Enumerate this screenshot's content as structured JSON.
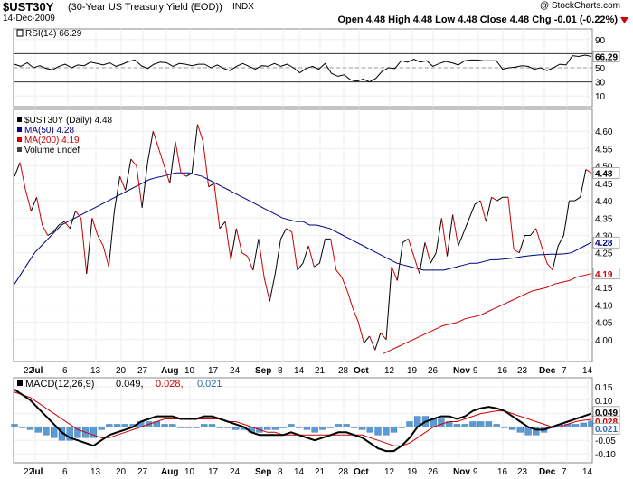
{
  "header": {
    "symbol": "$UST30Y",
    "name": "(30-Year US Treasury Yield (EOD))",
    "exchange": "INDX",
    "date": "14-Dec-2009",
    "copyright": "@ StockCharts.com",
    "ohlc": {
      "open_label": "Open",
      "open": "4.48",
      "high_label": "High",
      "high": "4.48",
      "low_label": "Low",
      "low": "4.48",
      "close_label": "Close",
      "close": "4.48",
      "chg_label": "Chg",
      "chg": "-0.01 (-0.22%)"
    },
    "colors": {
      "down": "#cc0000",
      "ma50": "#000080",
      "ma200": "#cc0000",
      "macd_signal": "#cc0000",
      "histogram": "#5b9bd5",
      "price": "#000000"
    }
  },
  "chart_data": [
    {
      "type": "line",
      "panel": "rsi",
      "legend": "RSI(14) 66.29",
      "current_label": "66.29",
      "ylim": [
        0,
        100
      ],
      "yticks": [
        "90",
        "70",
        "50",
        "30",
        "10"
      ],
      "reference_lines": [
        70,
        50,
        30
      ],
      "values": [
        55,
        52,
        57,
        50,
        53,
        49,
        47,
        52,
        55,
        50,
        54,
        53,
        58,
        56,
        54,
        57,
        52,
        55,
        59,
        61,
        53,
        49,
        55,
        58,
        57,
        52,
        56,
        55,
        53,
        55,
        55,
        50,
        54,
        49,
        46,
        52,
        56,
        52,
        48,
        53,
        52,
        56,
        52,
        55,
        50,
        43,
        49,
        52,
        48,
        56,
        42,
        38,
        40,
        33,
        31,
        34,
        30,
        35,
        45,
        50,
        49,
        60,
        58,
        62,
        58,
        60,
        52,
        56,
        59,
        57,
        54,
        60,
        61,
        61,
        60,
        60,
        60,
        48,
        50,
        51,
        53,
        52,
        48,
        50,
        46,
        50,
        55,
        54,
        67,
        66,
        68,
        66
      ]
    },
    {
      "type": "line",
      "panel": "price",
      "legend": [
        "$UST30Y (Daily) 4.48",
        "MA(50) 4.28",
        "MA(200) 4.19",
        "Volume undef"
      ],
      "ylim": [
        3.95,
        4.65
      ],
      "yticks": [
        "4.60",
        "4.55",
        "4.50",
        "4.45",
        "4.40",
        "4.35",
        "4.30",
        "4.25",
        "4.20",
        "4.15",
        "4.10",
        "4.05",
        "4.00"
      ],
      "xtick_labels": [
        "22",
        "Jul",
        "6",
        "13",
        "20",
        "27",
        "Aug",
        "10",
        "17",
        "24",
        "Sep",
        "8",
        "14",
        "21",
        "28",
        "Oct",
        "12",
        "19",
        "26",
        "Nov",
        "9",
        "16",
        "23",
        "Dec",
        "7",
        "14"
      ],
      "current_labels": [
        "4.48",
        "4.28",
        "4.19"
      ],
      "series": [
        {
          "name": "$UST30Y",
          "values": [
            4.47,
            4.51,
            4.43,
            4.37,
            4.41,
            4.33,
            4.3,
            4.31,
            4.33,
            4.34,
            4.32,
            4.37,
            4.35,
            4.19,
            4.35,
            4.3,
            4.27,
            4.21,
            4.37,
            4.47,
            4.43,
            4.52,
            4.5,
            4.38,
            4.51,
            4.6,
            4.55,
            4.5,
            4.45,
            4.57,
            4.48,
            4.47,
            4.48,
            4.62,
            4.57,
            4.44,
            4.45,
            4.32,
            4.34,
            4.23,
            4.32,
            4.25,
            4.24,
            4.2,
            4.29,
            4.18,
            4.11,
            4.19,
            4.29,
            4.32,
            4.31,
            4.2,
            4.22,
            4.27,
            4.21,
            4.22,
            4.29,
            4.29,
            4.2,
            4.18,
            4.14,
            4.09,
            4.05,
            3.99,
            4.01,
            3.97,
            4.02,
            4.0,
            4.21,
            4.17,
            4.28,
            4.29,
            4.24,
            4.19,
            4.28,
            4.22,
            4.25,
            4.35,
            4.24,
            4.36,
            4.27,
            4.31,
            4.35,
            4.39,
            4.4,
            4.34,
            4.41,
            4.4,
            4.41,
            4.41,
            4.26,
            4.25,
            4.3,
            4.3,
            4.32,
            4.27,
            4.22,
            4.2,
            4.27,
            4.3,
            4.4,
            4.4,
            4.41,
            4.49,
            4.48
          ]
        },
        {
          "name": "MA(50)",
          "values": [
            4.16,
            4.19,
            4.22,
            4.25,
            4.27,
            4.29,
            4.31,
            4.33,
            4.34,
            4.35,
            4.36,
            4.37,
            4.38,
            4.39,
            4.4,
            4.41,
            4.42,
            4.43,
            4.44,
            4.45,
            4.46,
            4.466,
            4.47,
            4.475,
            4.48,
            4.48,
            4.48,
            4.475,
            4.47,
            4.46,
            4.45,
            4.44,
            4.43,
            4.42,
            4.41,
            4.4,
            4.39,
            4.38,
            4.37,
            4.36,
            4.35,
            4.345,
            4.34,
            4.34,
            4.33,
            4.33,
            4.325,
            4.32,
            4.31,
            4.3,
            4.29,
            4.28,
            4.27,
            4.26,
            4.25,
            4.24,
            4.23,
            4.22,
            4.215,
            4.21,
            4.205,
            4.2,
            4.2,
            4.2,
            4.2,
            4.205,
            4.21,
            4.215,
            4.22,
            4.22,
            4.225,
            4.23,
            4.23,
            4.232,
            4.234,
            4.237,
            4.24,
            4.242,
            4.244,
            4.245,
            4.246,
            4.246,
            4.247,
            4.25,
            4.26,
            4.27,
            4.28
          ]
        },
        {
          "name": "MA(200)",
          "values": [
            3.96,
            3.97,
            3.98,
            3.99,
            4.0,
            4.01,
            4.02,
            4.03,
            4.04,
            4.045,
            4.05,
            4.06,
            4.065,
            4.07,
            4.08,
            4.09,
            4.1,
            4.11,
            4.12,
            4.13,
            4.14,
            4.145,
            4.15,
            4.16,
            4.165,
            4.17,
            4.18,
            4.185,
            4.19
          ]
        }
      ]
    },
    {
      "type": "line",
      "panel": "macd",
      "legend": [
        "MACD(12,26,9)",
        "0.049,",
        "0.028,",
        "0.021"
      ],
      "ylim": [
        -0.12,
        0.17
      ],
      "yticks": [
        "0.15",
        "0.10",
        "0.05",
        "0.00",
        "-0.05",
        "-0.10"
      ],
      "current_labels": [
        "0.049",
        "0.028",
        "0.021"
      ],
      "xtick_labels": [
        "22",
        "Jul",
        "6",
        "13",
        "20",
        "27",
        "Aug",
        "10",
        "17",
        "24",
        "Sep",
        "8",
        "14",
        "21",
        "28",
        "Oct",
        "12",
        "19",
        "26",
        "Nov",
        "9",
        "16",
        "23",
        "Dec",
        "7",
        "14"
      ],
      "series": [
        {
          "name": "MACD",
          "values": [
            0.14,
            0.12,
            0.1,
            0.07,
            0.04,
            0.01,
            -0.02,
            -0.04,
            -0.05,
            -0.06,
            -0.07,
            -0.05,
            -0.03,
            -0.02,
            -0.01,
            0.0,
            0.02,
            0.03,
            0.04,
            0.04,
            0.04,
            0.03,
            0.03,
            0.03,
            0.04,
            0.04,
            0.03,
            0.02,
            0.01,
            0.0,
            -0.02,
            -0.03,
            -0.03,
            -0.03,
            -0.03,
            -0.02,
            -0.03,
            -0.04,
            -0.05,
            -0.04,
            -0.03,
            -0.02,
            -0.02,
            -0.03,
            -0.04,
            -0.06,
            -0.08,
            -0.09,
            -0.09,
            -0.07,
            -0.04,
            0.0,
            0.02,
            0.03,
            0.04,
            0.04,
            0.03,
            0.04,
            0.06,
            0.07,
            0.075,
            0.07,
            0.06,
            0.04,
            0.02,
            0.0,
            -0.01,
            -0.01,
            0.0,
            0.01,
            0.02,
            0.03,
            0.04,
            0.05
          ]
        },
        {
          "name": "Signal",
          "values": [
            0.13,
            0.12,
            0.11,
            0.09,
            0.07,
            0.05,
            0.03,
            0.01,
            -0.01,
            -0.02,
            -0.03,
            -0.04,
            -0.04,
            -0.03,
            -0.02,
            -0.01,
            0.0,
            0.01,
            0.02,
            0.03,
            0.03,
            0.03,
            0.03,
            0.03,
            0.03,
            0.03,
            0.03,
            0.02,
            0.02,
            0.01,
            0.0,
            -0.01,
            -0.02,
            -0.02,
            -0.03,
            -0.03,
            -0.03,
            -0.03,
            -0.03,
            -0.03,
            -0.03,
            -0.03,
            -0.03,
            -0.03,
            -0.03,
            -0.04,
            -0.05,
            -0.06,
            -0.07,
            -0.07,
            -0.06,
            -0.04,
            -0.02,
            0.0,
            0.01,
            0.02,
            0.02,
            0.03,
            0.04,
            0.05,
            0.055,
            0.06,
            0.06,
            0.05,
            0.04,
            0.03,
            0.02,
            0.01,
            0.0,
            0.0,
            0.01,
            0.02,
            0.025,
            0.028
          ]
        }
      ]
    }
  ]
}
